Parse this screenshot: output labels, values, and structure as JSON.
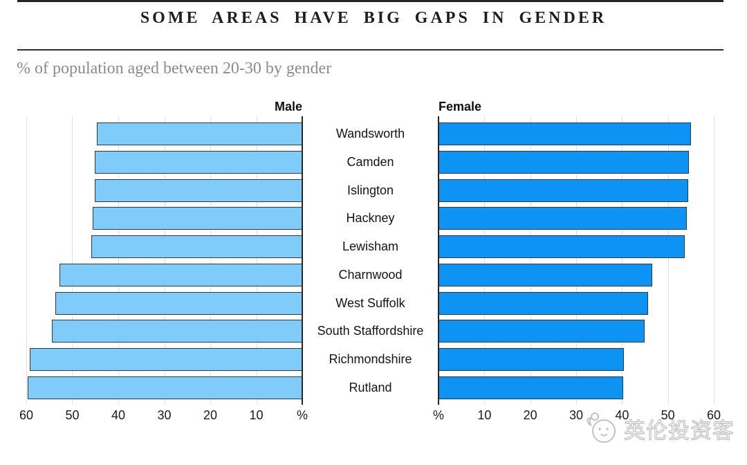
{
  "chart_data": {
    "type": "bar",
    "orientation": "horizontal",
    "layout": "back-to-back-pyramid",
    "title": "SOME AREAS HAVE BIG GAPS IN GENDER",
    "subtitle": "% of population aged between 20-30 by gender",
    "categories": [
      "Wandsworth",
      "Camden",
      "Islington",
      "Hackney",
      "Lewisham",
      "Charnwood",
      "West Suffolk",
      "South Staffordshire",
      "Richmondshire",
      "Rutland"
    ],
    "series": [
      {
        "name": "Male",
        "side": "left",
        "color": "#7fccfa",
        "values": [
          44.7,
          45.1,
          45.1,
          45.6,
          45.9,
          52.8,
          53.7,
          54.4,
          59.2,
          59.7
        ]
      },
      {
        "name": "Female",
        "side": "right",
        "color": "#0d93f4",
        "values": [
          55.1,
          54.6,
          54.4,
          54.1,
          53.7,
          46.6,
          45.7,
          44.9,
          40.4,
          40.2
        ]
      }
    ],
    "axis": {
      "min": 0,
      "max": 60,
      "tick_values": [
        10,
        20,
        30,
        40,
        50,
        60
      ],
      "zero_label": "%",
      "unit": "percent of population"
    },
    "grid": true,
    "legend_position": "panel-headers-top",
    "styles": {
      "bar_border": "#2c3a46",
      "gridline": "#e0e0e0",
      "spine": "#262626",
      "title_color": "#1d1d29",
      "subtitle_color": "#8a8a8a"
    }
  },
  "watermark": {
    "text": "英伦投资客",
    "icon": "mascot-face-icon"
  }
}
